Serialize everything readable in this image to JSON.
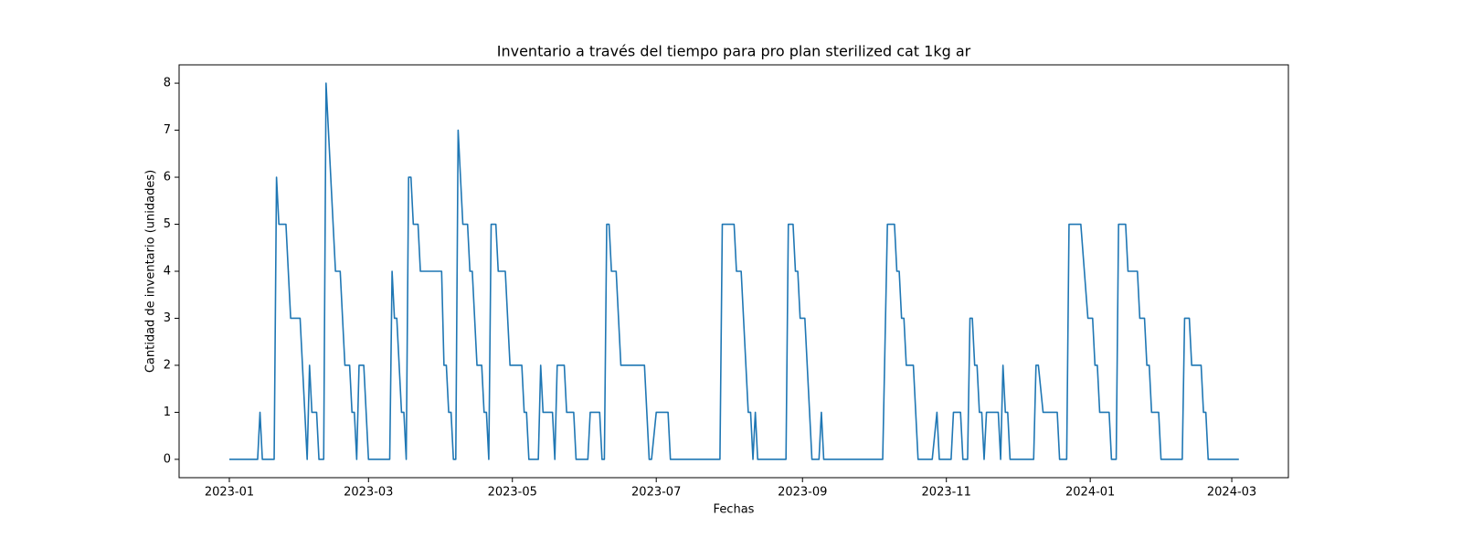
{
  "chart_data": {
    "type": "line",
    "title": "Inventario a través del tiempo para pro plan sterilized cat 1kg ar",
    "x_label": "Fechas",
    "y_label": "Cantidad de inventario (unidades)",
    "x": [
      0,
      12,
      13,
      14,
      19,
      20,
      21,
      24,
      26,
      30,
      33,
      34,
      35,
      37,
      38,
      40,
      41,
      45,
      47,
      49,
      51,
      52,
      53,
      54,
      55,
      57,
      59,
      68,
      69,
      70,
      71,
      73,
      74,
      75,
      76,
      77,
      78,
      80,
      81,
      90,
      91,
      92,
      93,
      94,
      95,
      96,
      97,
      99,
      101,
      102,
      103,
      105,
      107,
      108,
      109,
      110,
      111,
      113,
      114,
      117,
      119,
      124,
      125,
      126,
      127,
      131,
      132,
      133,
      137,
      138,
      139,
      142,
      143,
      146,
      147,
      152,
      153,
      157,
      158,
      159,
      160,
      161,
      162,
      164,
      166,
      176,
      178,
      179,
      181,
      186,
      187,
      208,
      209,
      214,
      215,
      217,
      220,
      221,
      222,
      223,
      224,
      236,
      237,
      239,
      240,
      241,
      242,
      244,
      247,
      250,
      251,
      252,
      277,
      279,
      282,
      283,
      284,
      285,
      286,
      287,
      290,
      292,
      298,
      300,
      301,
      306,
      307,
      310,
      311,
      313,
      314,
      315,
      316,
      317,
      318,
      319,
      320,
      321,
      326,
      327,
      328,
      329,
      330,
      331,
      341,
      342,
      343,
      345,
      351,
      352,
      355,
      356,
      361,
      364,
      366,
      367,
      368,
      369,
      373,
      374,
      376,
      377,
      380,
      381,
      385,
      386,
      388,
      389,
      390,
      391,
      394,
      395,
      404,
      405,
      407,
      408,
      412,
      413,
      414,
      415,
      428
    ],
    "series": [
      {
        "name": "inventario",
        "color": "#1f77b4",
        "values": [
          0,
          0,
          1,
          0,
          0,
          6,
          5,
          5,
          3,
          3,
          0,
          2,
          1,
          1,
          0,
          0,
          8,
          4,
          4,
          2,
          2,
          1,
          1,
          0,
          2,
          2,
          0,
          0,
          4,
          3,
          3,
          1,
          1,
          0,
          6,
          6,
          5,
          5,
          4,
          4,
          2,
          2,
          1,
          1,
          0,
          0,
          7,
          5,
          5,
          4,
          4,
          2,
          2,
          1,
          1,
          0,
          5,
          5,
          4,
          4,
          2,
          2,
          1,
          1,
          0,
          0,
          2,
          1,
          1,
          0,
          2,
          2,
          1,
          1,
          0,
          0,
          1,
          1,
          0,
          0,
          5,
          5,
          4,
          4,
          2,
          2,
          0,
          0,
          1,
          1,
          0,
          0,
          5,
          5,
          4,
          4,
          1,
          1,
          0,
          1,
          0,
          0,
          5,
          5,
          4,
          4,
          3,
          3,
          0,
          0,
          1,
          0,
          0,
          5,
          5,
          4,
          4,
          3,
          3,
          2,
          2,
          0,
          0,
          1,
          0,
          0,
          1,
          1,
          0,
          0,
          3,
          3,
          2,
          2,
          1,
          1,
          0,
          1,
          1,
          0,
          2,
          1,
          1,
          0,
          0,
          2,
          2,
          1,
          1,
          0,
          0,
          5,
          5,
          3,
          3,
          2,
          2,
          1,
          1,
          0,
          0,
          5,
          5,
          4,
          4,
          3,
          3,
          2,
          2,
          1,
          1,
          0,
          0,
          3,
          3,
          2,
          2,
          1,
          1,
          0,
          0
        ]
      }
    ],
    "xlim": [
      -21.3,
      449
    ],
    "xticks": [
      {
        "value": 0,
        "label": "2023-01"
      },
      {
        "value": 59,
        "label": "2023-03"
      },
      {
        "value": 120,
        "label": "2023-05"
      },
      {
        "value": 181,
        "label": "2023-07"
      },
      {
        "value": 243,
        "label": "2023-09"
      },
      {
        "value": 304,
        "label": "2023-11"
      },
      {
        "value": 365,
        "label": "2024-01"
      },
      {
        "value": 425,
        "label": "2024-03"
      }
    ],
    "ylim": [
      -0.39,
      8.39
    ],
    "yticks": [
      0,
      1,
      2,
      3,
      4,
      5,
      6,
      7,
      8
    ],
    "grid": false
  }
}
